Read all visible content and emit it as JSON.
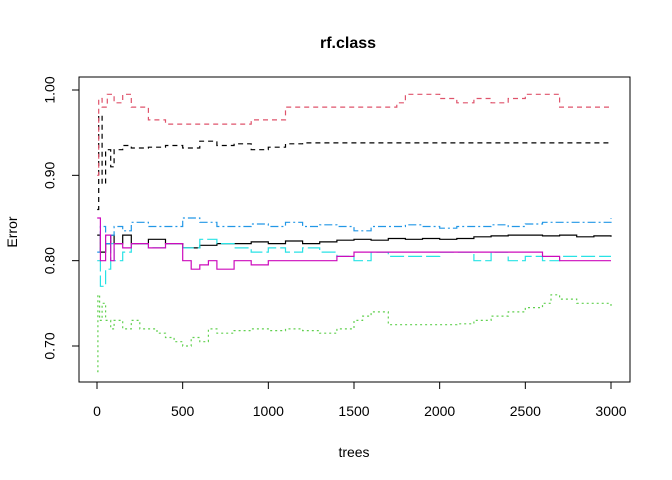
{
  "chart_data": {
    "type": "line",
    "title": "rf.class",
    "xlabel": "trees",
    "ylabel": "Error",
    "xlim": [
      0,
      3000
    ],
    "ylim": [
      0.67,
      1.0
    ],
    "x_ticks": [
      0,
      500,
      1000,
      1500,
      2000,
      2500,
      3000
    ],
    "y_ticks": [
      0.7,
      0.8,
      0.9,
      1.0
    ],
    "y_tick_labels": [
      "0.70",
      "0.80",
      "0.90",
      "1.00"
    ],
    "grid": false,
    "legend": "none",
    "series": [
      {
        "color": "#000000",
        "dash": "none",
        "x": [
          1,
          20,
          50,
          80,
          100,
          150,
          200,
          300,
          400,
          500,
          600,
          700,
          800,
          900,
          1000,
          1100,
          1200,
          1300,
          1400,
          1500,
          1600,
          1700,
          1800,
          1900,
          2000,
          2100,
          2200,
          2300,
          2400,
          2500,
          2600,
          2700,
          2800,
          2900,
          3000
        ],
        "y": [
          0.83,
          0.81,
          0.82,
          0.83,
          0.82,
          0.83,
          0.82,
          0.825,
          0.82,
          0.815,
          0.818,
          0.82,
          0.82,
          0.822,
          0.82,
          0.823,
          0.82,
          0.822,
          0.824,
          0.825,
          0.824,
          0.826,
          0.825,
          0.826,
          0.825,
          0.826,
          0.828,
          0.829,
          0.83,
          0.83,
          0.829,
          0.83,
          0.828,
          0.829,
          0.828
        ]
      },
      {
        "color": "#000000",
        "dash": "5,4",
        "x": [
          1,
          10,
          30,
          50,
          80,
          100,
          150,
          200,
          300,
          400,
          500,
          600,
          700,
          800,
          900,
          1000,
          1100,
          1200,
          1500,
          2000,
          2500,
          3000
        ],
        "y": [
          0.86,
          0.97,
          0.89,
          0.93,
          0.91,
          0.93,
          0.935,
          0.932,
          0.933,
          0.935,
          0.932,
          0.94,
          0.935,
          0.937,
          0.93,
          0.933,
          0.937,
          0.938,
          0.938,
          0.938,
          0.938,
          0.938
        ]
      },
      {
        "color": "#DF536B",
        "dash": "5,4",
        "x": [
          1,
          10,
          30,
          60,
          100,
          150,
          200,
          300,
          400,
          500,
          600,
          700,
          800,
          900,
          1000,
          1100,
          1200,
          1500,
          1750,
          1800,
          2000,
          2100,
          2200,
          2300,
          2400,
          2500,
          2600,
          2700,
          2800,
          2900,
          3000
        ],
        "y": [
          0.9,
          0.99,
          0.98,
          0.995,
          0.985,
          0.995,
          0.98,
          0.965,
          0.96,
          0.96,
          0.96,
          0.96,
          0.96,
          0.965,
          0.965,
          0.98,
          0.98,
          0.98,
          0.985,
          0.995,
          0.99,
          0.985,
          0.99,
          0.985,
          0.99,
          0.995,
          0.995,
          0.98,
          0.98,
          0.98,
          0.98
        ]
      },
      {
        "color": "#61D04F",
        "dash": "2,3",
        "x": [
          1,
          5,
          15,
          30,
          50,
          80,
          100,
          150,
          200,
          250,
          300,
          350,
          400,
          450,
          500,
          550,
          600,
          650,
          700,
          800,
          900,
          1000,
          1100,
          1200,
          1300,
          1400,
          1500,
          1550,
          1600,
          1700,
          1800,
          1900,
          2000,
          2100,
          2200,
          2300,
          2400,
          2500,
          2600,
          2650,
          2700,
          2800,
          2900,
          3000
        ],
        "y": [
          0.67,
          0.76,
          0.73,
          0.75,
          0.73,
          0.72,
          0.73,
          0.72,
          0.73,
          0.72,
          0.72,
          0.715,
          0.71,
          0.705,
          0.7,
          0.71,
          0.705,
          0.72,
          0.715,
          0.718,
          0.72,
          0.718,
          0.72,
          0.718,
          0.715,
          0.72,
          0.73,
          0.735,
          0.74,
          0.725,
          0.725,
          0.725,
          0.725,
          0.726,
          0.73,
          0.735,
          0.74,
          0.745,
          0.75,
          0.76,
          0.755,
          0.75,
          0.75,
          0.747
        ]
      },
      {
        "color": "#2297E6",
        "dash": "8,3,2,3",
        "x": [
          1,
          20,
          50,
          80,
          100,
          150,
          200,
          300,
          400,
          500,
          600,
          700,
          800,
          900,
          1000,
          1100,
          1200,
          1300,
          1400,
          1500,
          1600,
          1700,
          1800,
          1900,
          2000,
          2100,
          2200,
          2300,
          2400,
          2500,
          2600,
          2700,
          2800,
          2900,
          3000
        ],
        "y": [
          0.81,
          0.84,
          0.82,
          0.83,
          0.84,
          0.835,
          0.845,
          0.84,
          0.84,
          0.85,
          0.845,
          0.84,
          0.84,
          0.843,
          0.84,
          0.845,
          0.84,
          0.842,
          0.84,
          0.835,
          0.84,
          0.84,
          0.842,
          0.84,
          0.838,
          0.84,
          0.84,
          0.842,
          0.84,
          0.843,
          0.845,
          0.845,
          0.845,
          0.845,
          0.85
        ]
      },
      {
        "color": "#28E2E5",
        "dash": "14,4",
        "x": [
          1,
          20,
          50,
          80,
          100,
          150,
          200,
          300,
          400,
          500,
          600,
          700,
          800,
          900,
          1000,
          1100,
          1200,
          1300,
          1400,
          1500,
          1600,
          1700,
          1800,
          1900,
          2000,
          2100,
          2200,
          2300,
          2400,
          2500,
          2600,
          2700,
          2800,
          2900,
          3000
        ],
        "y": [
          0.8,
          0.77,
          0.79,
          0.82,
          0.8,
          0.81,
          0.82,
          0.815,
          0.82,
          0.815,
          0.825,
          0.82,
          0.815,
          0.81,
          0.815,
          0.81,
          0.815,
          0.81,
          0.805,
          0.8,
          0.81,
          0.805,
          0.805,
          0.805,
          0.81,
          0.81,
          0.8,
          0.81,
          0.8,
          0.805,
          0.8,
          0.805,
          0.805,
          0.805,
          0.805
        ]
      },
      {
        "color": "#CD0BBC",
        "dash": "none",
        "x": [
          1,
          20,
          50,
          80,
          100,
          150,
          200,
          300,
          400,
          500,
          550,
          600,
          650,
          700,
          800,
          900,
          1000,
          1100,
          1200,
          1300,
          1400,
          1500,
          1600,
          1700,
          1800,
          1900,
          2000,
          2100,
          2200,
          2300,
          2400,
          2500,
          2600,
          2700,
          2800,
          2900,
          3000
        ],
        "y": [
          0.85,
          0.8,
          0.83,
          0.8,
          0.82,
          0.815,
          0.82,
          0.815,
          0.82,
          0.8,
          0.79,
          0.795,
          0.8,
          0.79,
          0.8,
          0.795,
          0.8,
          0.8,
          0.8,
          0.8,
          0.805,
          0.81,
          0.81,
          0.81,
          0.81,
          0.81,
          0.81,
          0.81,
          0.81,
          0.81,
          0.81,
          0.81,
          0.805,
          0.8,
          0.8,
          0.8,
          0.8
        ]
      }
    ]
  }
}
